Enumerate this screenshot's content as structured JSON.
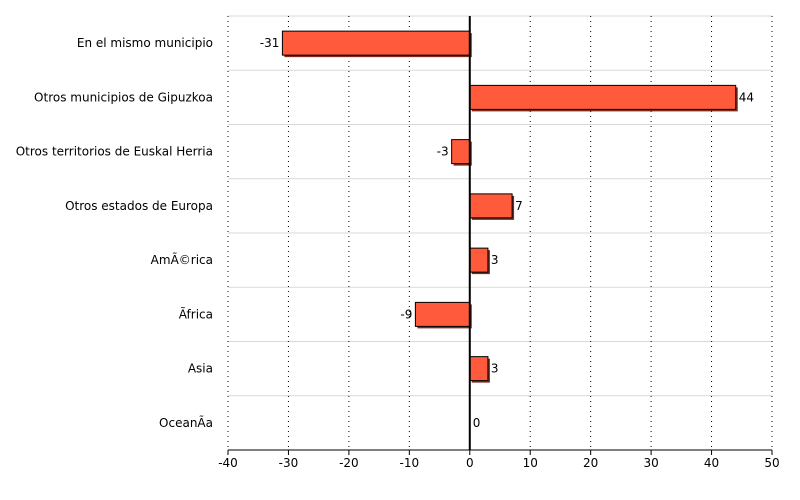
{
  "chart_data": {
    "type": "bar",
    "orientation": "horizontal",
    "categories": [
      "En el mismo municipio",
      "Otros municipios de Gipuzkoa",
      "Otros territorios de Euskal Herria",
      "Otros estados de Europa",
      "AmÃ©rica",
      "Ãfrica",
      "Asia",
      "OceanÃ­a"
    ],
    "values": [
      -31,
      44,
      -3,
      7,
      3,
      -9,
      3,
      0
    ],
    "data_labels": [
      "-31",
      "44",
      "-3",
      "7",
      "3",
      "-9",
      "3",
      "0"
    ],
    "xlim": [
      -40,
      50
    ],
    "xticks": [
      -40,
      -30,
      -20,
      -10,
      0,
      10,
      20,
      30,
      40,
      50
    ],
    "grid": true,
    "bar_color": "#ff5a3c",
    "bar_shadow_color": "#7a2d1e",
    "zero_line_color": "#000000"
  }
}
